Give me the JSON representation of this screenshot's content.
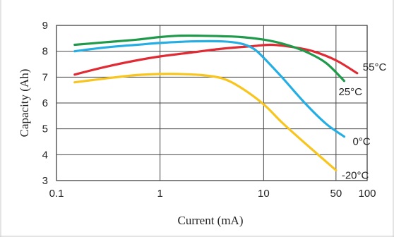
{
  "chart_data": {
    "type": "line",
    "title": "",
    "xlabel": "Current (mA)",
    "ylabel": "Capacity (Ah)",
    "x_scale": "log",
    "xlim": [
      0.1,
      100
    ],
    "ylim": [
      3,
      9
    ],
    "x_ticks": [
      0.1,
      1,
      10,
      50,
      100
    ],
    "x_tick_labels": [
      "0.1",
      "1",
      "10",
      "50",
      "100"
    ],
    "y_ticks": [
      3,
      4,
      5,
      6,
      7,
      8,
      9
    ],
    "y_tick_labels": [
      "3",
      "4",
      "5",
      "6",
      "7",
      "8",
      "9"
    ],
    "grid": true,
    "legend": "none",
    "series": [
      {
        "name": "55°C",
        "color": "#e02a34",
        "x": [
          0.15,
          0.3,
          0.6,
          1,
          2,
          4,
          8,
          12,
          20,
          30,
          50,
          80
        ],
        "y": [
          7.1,
          7.4,
          7.65,
          7.8,
          7.95,
          8.1,
          8.2,
          8.25,
          8.15,
          8.0,
          7.65,
          7.15
        ]
      },
      {
        "name": "25°C",
        "color": "#1f9a4b",
        "x": [
          0.15,
          0.3,
          0.6,
          1,
          1.5,
          2.5,
          4,
          6,
          10,
          15,
          25,
          40,
          60
        ],
        "y": [
          8.25,
          8.35,
          8.45,
          8.55,
          8.6,
          8.6,
          8.58,
          8.55,
          8.45,
          8.3,
          8.0,
          7.55,
          6.85
        ]
      },
      {
        "name": "0°C",
        "color": "#25aee4",
        "x": [
          0.15,
          0.3,
          0.6,
          1,
          2,
          4,
          6,
          8,
          10,
          15,
          25,
          40,
          60
        ],
        "y": [
          8.0,
          8.15,
          8.25,
          8.32,
          8.38,
          8.38,
          8.3,
          8.1,
          7.75,
          7.0,
          6.0,
          5.2,
          4.7
        ]
      },
      {
        "name": "-20°C",
        "color": "#f7c51e",
        "x": [
          0.15,
          0.3,
          0.6,
          1,
          1.5,
          2.5,
          4,
          6,
          10,
          15,
          25,
          50
        ],
        "y": [
          6.8,
          6.95,
          7.08,
          7.12,
          7.12,
          7.08,
          6.95,
          6.6,
          5.95,
          5.25,
          4.45,
          3.4
        ]
      }
    ]
  }
}
